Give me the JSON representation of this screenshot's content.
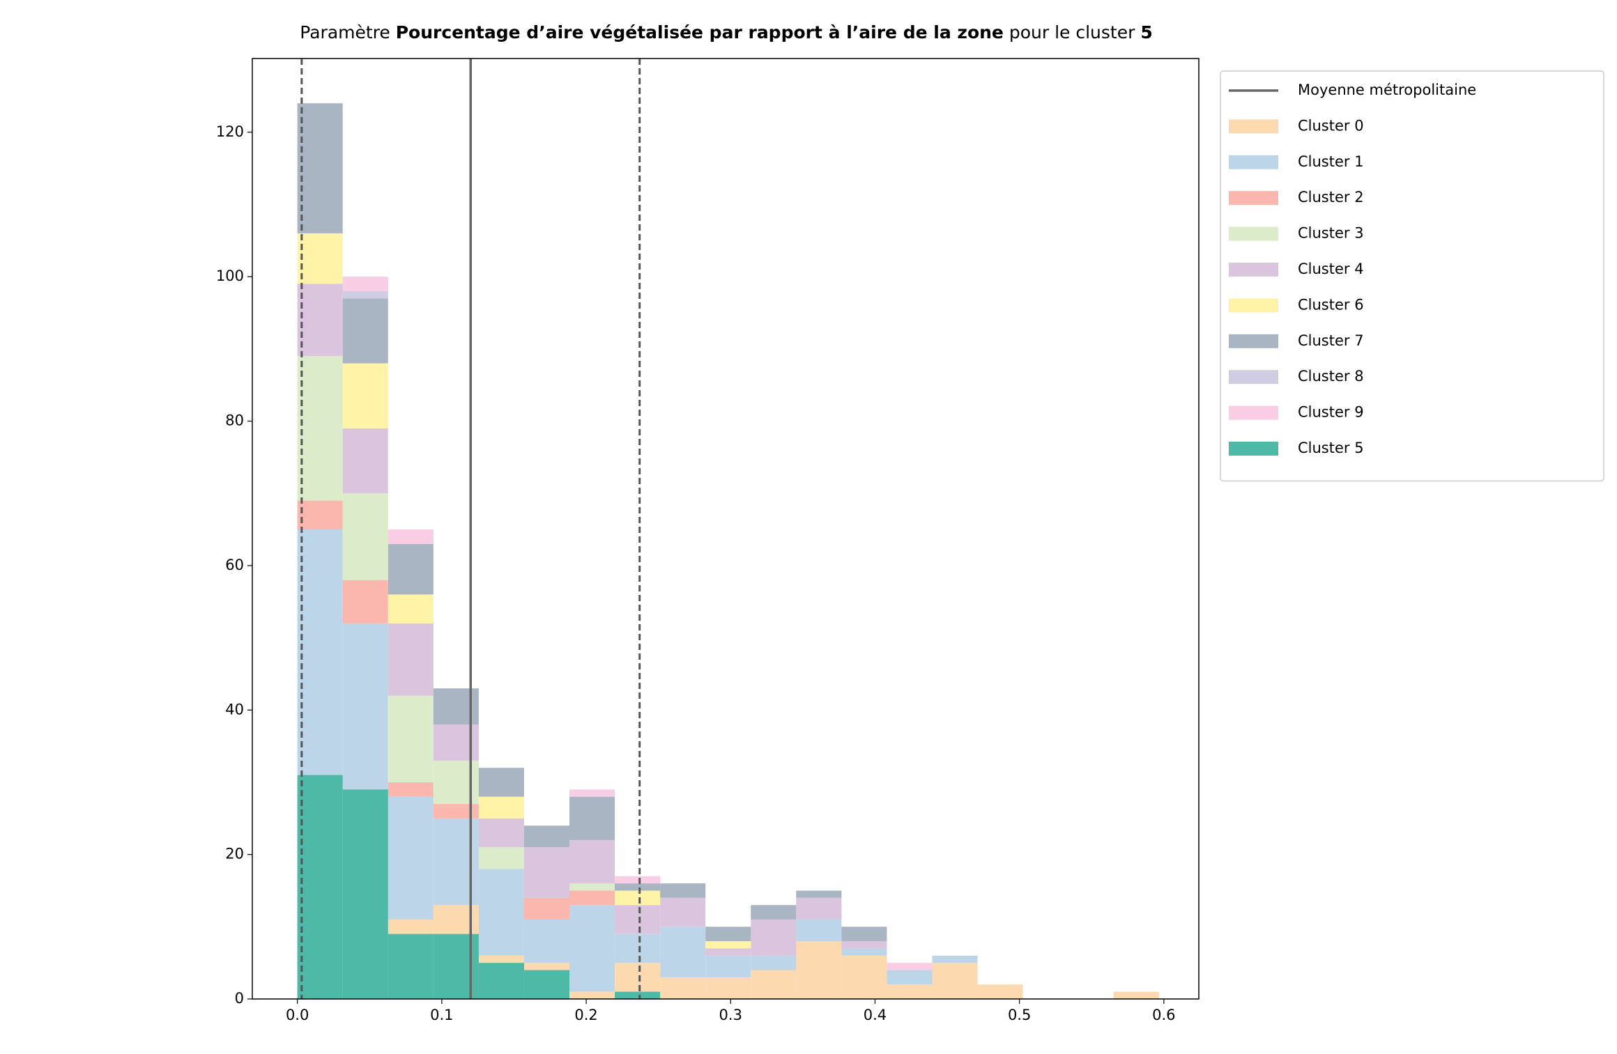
{
  "chart_data": {
    "type": "stacked_histogram",
    "title": [
      "Paramètre ",
      "Pourcentage d’aire végétalisée par rapport à l’aire de la zone",
      " pour le cluster ",
      "5"
    ],
    "bins": [
      0,
      0.0314,
      0.0628,
      0.0942,
      0.1256,
      0.157,
      0.1884,
      0.2198,
      0.2512,
      0.2826,
      0.314,
      0.3454,
      0.3768,
      0.4082,
      0.4396,
      0.471,
      0.5024,
      0.5338,
      0.5652,
      0.5966
    ],
    "series": [
      {
        "name": "Cluster 0",
        "color": "#fdd9b0",
        "values": [
          0,
          0,
          11,
          13,
          6,
          5,
          1,
          5,
          3,
          3,
          4,
          8,
          6,
          2,
          5,
          2,
          0,
          0,
          1
        ]
      },
      {
        "name": "Cluster 1",
        "color": "#bdd5e8",
        "values": [
          65,
          52,
          17,
          12,
          12,
          6,
          12,
          4,
          7,
          3,
          2,
          3,
          1,
          2,
          1,
          0,
          0,
          0,
          0
        ]
      },
      {
        "name": "Cluster 2",
        "color": "#fbb6ad",
        "values": [
          4,
          6,
          2,
          2,
          0,
          3,
          2,
          0,
          0,
          0,
          0,
          0,
          0,
          0,
          0,
          0,
          0,
          0,
          0
        ]
      },
      {
        "name": "Cluster 3",
        "color": "#dcebc9",
        "values": [
          20,
          12,
          12,
          6,
          3,
          0,
          1,
          0,
          0,
          0,
          0,
          0,
          0,
          0,
          0,
          0,
          0,
          0,
          0
        ]
      },
      {
        "name": "Cluster 4",
        "color": "#dbc4de",
        "values": [
          10,
          9,
          10,
          5,
          4,
          7,
          6,
          4,
          4,
          1,
          5,
          3,
          1,
          0,
          0,
          0,
          0,
          0,
          0
        ]
      },
      {
        "name": "Cluster 6",
        "color": "#fff3a8",
        "values": [
          7,
          9,
          4,
          0,
          3,
          0,
          0,
          2,
          0,
          1,
          0,
          0,
          0,
          0,
          0,
          0,
          0,
          0,
          0
        ]
      },
      {
        "name": "Cluster 7",
        "color": "#aab5c3",
        "values": [
          18,
          9,
          7,
          5,
          4,
          3,
          6,
          1,
          2,
          2,
          2,
          1,
          2,
          0,
          0,
          0,
          0,
          0,
          0
        ]
      },
      {
        "name": "Cluster 8",
        "color": "#d0cde3",
        "values": [
          0,
          1,
          0,
          0,
          0,
          0,
          0,
          0,
          0,
          0,
          0,
          0,
          0,
          0,
          0,
          0,
          0,
          0,
          0
        ]
      },
      {
        "name": "Cluster 9",
        "color": "#f9cde3",
        "values": [
          0,
          2,
          2,
          0,
          0,
          0,
          1,
          1,
          0,
          0,
          0,
          0,
          0,
          1,
          0,
          0,
          0,
          0,
          0
        ]
      },
      {
        "name": "Cluster 5",
        "color": "#4fb9a7",
        "stack": false,
        "values": [
          31,
          29,
          9,
          9,
          5,
          4,
          0,
          1,
          0,
          0,
          0,
          0,
          0,
          0,
          0,
          0,
          0,
          0,
          0
        ]
      }
    ],
    "mean_line": {
      "name": "Moyenne métropolitaine",
      "value": 0.12,
      "color": "#666666"
    },
    "dashed_lines": [
      0.003,
      0.237
    ],
    "xlim": [
      -0.0312,
      0.6242
    ],
    "ylim": [
      0,
      130.2
    ],
    "xticks": [
      {
        "value": 0,
        "label": "0.0"
      },
      0.1,
      0.2,
      0.3,
      0.4,
      0.5,
      0.6
    ],
    "yticks": [
      0,
      20,
      40,
      60,
      80,
      100,
      120
    ],
    "legend": "outside-upper-right"
  }
}
